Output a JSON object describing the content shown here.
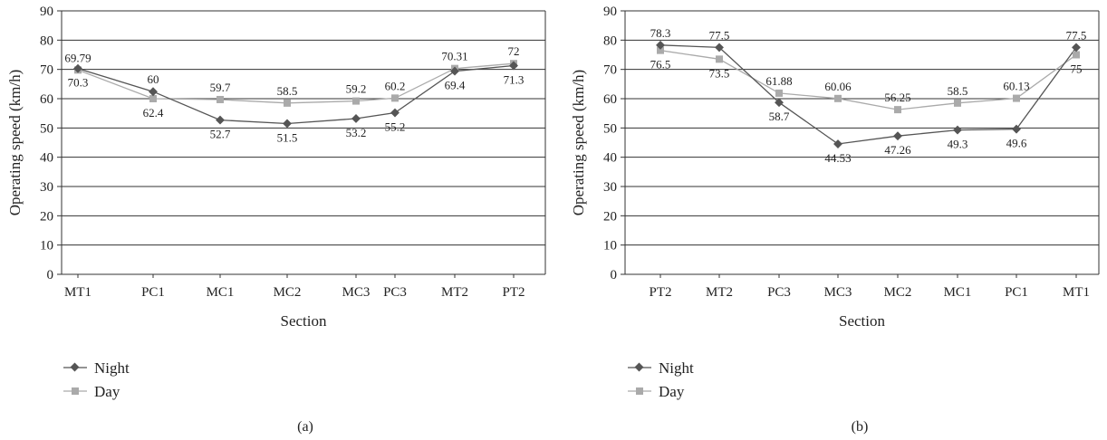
{
  "charts": [
    {
      "panel_label": "(a)",
      "legend_items": [
        {
          "name": "Night",
          "color": "#555555",
          "marker": "diamond"
        },
        {
          "name": "Day",
          "color": "#aaaaaa",
          "marker": "square"
        }
      ]
    },
    {
      "panel_label": "(b)",
      "legend_items": [
        {
          "name": "Night",
          "color": "#555555",
          "marker": "diamond"
        },
        {
          "name": "Day",
          "color": "#aaaaaa",
          "marker": "square"
        }
      ]
    }
  ],
  "chart_data": [
    {
      "type": "line",
      "categories": [
        "MT1",
        "PC1",
        "MC1",
        "MC2",
        "MC3",
        "PC3",
        "MT2",
        "PT2"
      ],
      "series": [
        {
          "name": "Night",
          "values": [
            70.3,
            62.4,
            52.7,
            51.5,
            53.2,
            55.2,
            69.4,
            71.3
          ],
          "color": "#555555",
          "marker": "diamond"
        },
        {
          "name": "Day",
          "values": [
            69.79,
            60,
            59.7,
            58.5,
            59.2,
            60.2,
            70.31,
            72
          ],
          "color": "#aaaaaa",
          "marker": "square"
        }
      ],
      "labels": [
        {
          "text": "69.79",
          "i": 0,
          "v": 69.79,
          "pos": "above"
        },
        {
          "text": "70.3",
          "i": 0,
          "v": 70.3,
          "pos": "below"
        },
        {
          "text": "60",
          "i": 1,
          "v": 60,
          "pos": "above",
          "ref": 62.4
        },
        {
          "text": "62.4",
          "i": 1,
          "v": 60,
          "pos": "below"
        },
        {
          "text": "59.7",
          "i": 2,
          "v": 59.7,
          "pos": "above"
        },
        {
          "text": "52.7",
          "i": 2,
          "v": 52.7,
          "pos": "below"
        },
        {
          "text": "58.5",
          "i": 3,
          "v": 58.5,
          "pos": "above"
        },
        {
          "text": "51.5",
          "i": 3,
          "v": 51.5,
          "pos": "below"
        },
        {
          "text": "59.2",
          "i": 4,
          "v": 59.2,
          "pos": "above"
        },
        {
          "text": "53.2",
          "i": 4,
          "v": 53.2,
          "pos": "below"
        },
        {
          "text": "60.2",
          "i": 5,
          "v": 60.2,
          "pos": "above"
        },
        {
          "text": "55.2",
          "i": 5,
          "v": 55.2,
          "pos": "below"
        },
        {
          "text": "70.31",
          "i": 6,
          "v": 70.31,
          "pos": "above"
        },
        {
          "text": "69.4",
          "i": 6,
          "v": 69.4,
          "pos": "below"
        },
        {
          "text": "72",
          "i": 7,
          "v": 72,
          "pos": "above"
        },
        {
          "text": "71.3",
          "i": 7,
          "v": 71.3,
          "pos": "below"
        }
      ],
      "xlabel": "Section",
      "ylabel": "Operating speed (km/h)",
      "ylim": [
        0,
        90
      ],
      "yticks": [
        0,
        10,
        20,
        30,
        40,
        50,
        60,
        70,
        80,
        90
      ],
      "grid": true,
      "legend_position": "bottom-left"
    },
    {
      "type": "line",
      "categories": [
        "PT2",
        "MT2",
        "PC3",
        "MC3",
        "MC2",
        "MC1",
        "PC1",
        "MT1"
      ],
      "series": [
        {
          "name": "Night",
          "values": [
            78.3,
            77.5,
            58.7,
            44.53,
            47.26,
            49.3,
            49.6,
            77.5
          ],
          "color": "#555555",
          "marker": "diamond"
        },
        {
          "name": "Day",
          "values": [
            76.5,
            73.5,
            61.88,
            60.06,
            56.25,
            58.5,
            60.13,
            75
          ],
          "color": "#aaaaaa",
          "marker": "square"
        }
      ],
      "labels": [
        {
          "text": "78.3",
          "i": 0,
          "v": 78.3,
          "pos": "above"
        },
        {
          "text": "76.5",
          "i": 0,
          "v": 76.5,
          "pos": "below"
        },
        {
          "text": "77.5",
          "i": 1,
          "v": 77.5,
          "pos": "above"
        },
        {
          "text": "73.5",
          "i": 1,
          "v": 73.5,
          "pos": "below"
        },
        {
          "text": "61.88",
          "i": 2,
          "v": 61.88,
          "pos": "above"
        },
        {
          "text": "58.7",
          "i": 2,
          "v": 58.7,
          "pos": "below"
        },
        {
          "text": "60.06",
          "i": 3,
          "v": 60.06,
          "pos": "above"
        },
        {
          "text": "44.53",
          "i": 3,
          "v": 44.53,
          "pos": "below"
        },
        {
          "text": "56.25",
          "i": 4,
          "v": 56.25,
          "pos": "above"
        },
        {
          "text": "47.26",
          "i": 4,
          "v": 47.26,
          "pos": "below"
        },
        {
          "text": "58.5",
          "i": 5,
          "v": 58.5,
          "pos": "above"
        },
        {
          "text": "49.3",
          "i": 5,
          "v": 49.3,
          "pos": "below"
        },
        {
          "text": "60.13",
          "i": 6,
          "v": 60.13,
          "pos": "above"
        },
        {
          "text": "49.6",
          "i": 6,
          "v": 49.6,
          "pos": "below"
        },
        {
          "text": "77.5",
          "i": 7,
          "v": 77.5,
          "pos": "above"
        },
        {
          "text": "75",
          "i": 7,
          "v": 75,
          "pos": "below"
        }
      ],
      "xlabel": "Section",
      "ylabel": "Operating speed (km/h)",
      "ylim": [
        0,
        90
      ],
      "yticks": [
        0,
        10,
        20,
        30,
        40,
        50,
        60,
        70,
        80,
        90
      ],
      "grid": true,
      "legend_position": "bottom-left"
    }
  ]
}
